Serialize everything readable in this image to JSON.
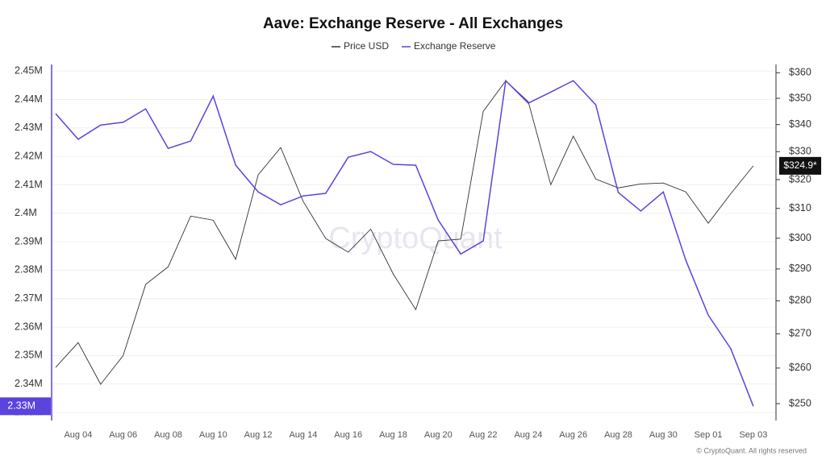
{
  "chart_data": {
    "type": "line",
    "title": "Aave: Exchange Reserve - All Exchanges",
    "watermark": "CryptoQuant",
    "footer": "© CryptoQuant. All rights reserved",
    "categories": [
      null,
      "Aug 04",
      null,
      "Aug 06",
      null,
      "Aug 08",
      null,
      "Aug 10",
      null,
      "Aug 12",
      null,
      "Aug 14",
      null,
      "Aug 16",
      null,
      "Aug 18",
      null,
      "Aug 20",
      null,
      "Aug 22",
      null,
      "Aug 24",
      null,
      "Aug 26",
      null,
      "Aug 28",
      null,
      "Aug 30",
      null,
      "Sep 01",
      null,
      "Sep 03"
    ],
    "series": [
      {
        "name": "Price USD",
        "color": "#333333",
        "axis": "y2",
        "values": [
          260.2,
          267.4,
          255.4,
          263.6,
          285.1,
          290.7,
          307.4,
          306.0,
          293.1,
          321.7,
          331.5,
          312.4,
          299.9,
          295.4,
          303.0,
          288.4,
          277.3,
          299.1,
          299.7,
          345.0,
          356.8,
          348.7,
          318.2,
          335.7,
          320.2,
          317.1,
          318.5,
          318.8,
          315.7,
          305.0,
          315.1,
          324.9
        ],
        "value_labels": [
          null,
          null,
          null,
          null,
          null,
          null,
          null,
          null,
          null,
          null,
          null,
          null,
          null,
          null,
          null,
          null,
          null,
          null,
          null,
          null,
          null,
          null,
          null,
          null,
          null,
          null,
          null,
          null,
          null,
          null,
          null,
          "$324.9*"
        ]
      },
      {
        "name": "Exchange Reserve",
        "color": "#5b43de",
        "values": [
          2435000,
          2426000,
          2431000,
          2432000,
          2436700,
          2422800,
          2425400,
          2441200,
          2416900,
          2407500,
          2403000,
          2406100,
          2407000,
          2419700,
          2421700,
          2417200,
          2416900,
          2397600,
          2385700,
          2390300,
          2446600,
          2438700,
          2442600,
          2446600,
          2438100,
          2407300,
          2400800,
          2407500,
          2383500,
          2364200,
          2352400,
          2332200
        ],
        "value_labels": [
          null,
          null,
          null,
          null,
          null,
          null,
          null,
          null,
          null,
          null,
          null,
          null,
          null,
          null,
          null,
          null,
          null,
          null,
          null,
          null,
          null,
          null,
          null,
          null,
          null,
          null,
          null,
          null,
          null,
          null,
          null,
          "2.33M"
        ]
      }
    ],
    "ylim": [
      2327200,
      2452300
    ],
    "yticks": [
      {
        "value": 2330000,
        "label": "2.33M"
      },
      {
        "value": 2340000,
        "label": "2.34M"
      },
      {
        "value": 2350000,
        "label": "2.35M"
      },
      {
        "value": 2360000,
        "label": "2.36M"
      },
      {
        "value": 2370000,
        "label": "2.37M"
      },
      {
        "value": 2380000,
        "label": "2.38M"
      },
      {
        "value": 2390000,
        "label": "2.39M"
      },
      {
        "value": 2400000,
        "label": "2.4M"
      },
      {
        "value": 2410000,
        "label": "2.41M"
      },
      {
        "value": 2420000,
        "label": "2.42M"
      },
      {
        "value": 2430000,
        "label": "2.43M"
      },
      {
        "value": 2440000,
        "label": "2.44M"
      },
      {
        "value": 2450000,
        "label": "2.45M"
      }
    ],
    "y2lim": [
      245.4,
      363.3
    ],
    "y2log": true,
    "y2ticks": [
      {
        "value": 250,
        "label": "$250"
      },
      {
        "value": 260,
        "label": "$260"
      },
      {
        "value": 270,
        "label": "$270"
      },
      {
        "value": 280,
        "label": "$280"
      },
      {
        "value": 290,
        "label": "$290"
      },
      {
        "value": 300,
        "label": "$300"
      },
      {
        "value": 310,
        "label": "$310"
      },
      {
        "value": 320,
        "label": "$320"
      },
      {
        "value": 330,
        "label": "$330"
      },
      {
        "value": 340,
        "label": "$340"
      },
      {
        "value": 350,
        "label": "$350"
      },
      {
        "value": 360,
        "label": "$360"
      }
    ],
    "grid": true
  }
}
